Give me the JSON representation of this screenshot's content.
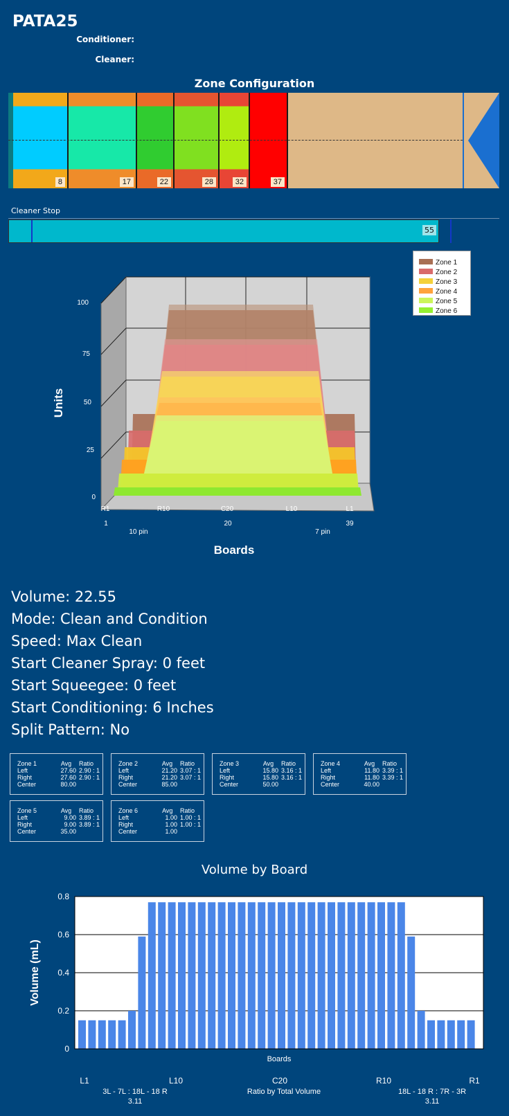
{
  "header": {
    "title": "PATA25",
    "conditioner_label": "Conditioner:",
    "cleaner_label": "Cleaner:"
  },
  "zone_config": {
    "title": "Zone Configuration",
    "zones": [
      {
        "label": "8",
        "color": "#00ccff"
      },
      {
        "label": "17",
        "color": "#17e8a8"
      },
      {
        "label": "22",
        "color": "#30cc30"
      },
      {
        "label": "28",
        "color": "#80e020"
      },
      {
        "label": "32",
        "color": "#b0ec10"
      },
      {
        "label": "37",
        "color": "#ff0000"
      }
    ]
  },
  "cleaner_stop": {
    "label": "Cleaner Stop",
    "value": "55"
  },
  "chart3d": {
    "ylabel": "Units",
    "xlabel": "Boards",
    "yticks": [
      "100",
      "75",
      "50",
      "25",
      "0"
    ],
    "xticks": [
      "R1",
      "R10",
      "C20",
      "L10",
      "L1"
    ],
    "board_numbers": [
      "1",
      "20",
      "39"
    ],
    "pins": [
      "10 pin",
      "7 pin"
    ],
    "legend": [
      {
        "name": "Zone 1",
        "color": "#a86f54"
      },
      {
        "name": "Zone 2",
        "color": "#d96b6b"
      },
      {
        "name": "Zone 3",
        "color": "#f4d13a"
      },
      {
        "name": "Zone 4",
        "color": "#ffa33c"
      },
      {
        "name": "Zone 5",
        "color": "#ccf55a"
      },
      {
        "name": "Zone 6",
        "color": "#96f030"
      }
    ]
  },
  "info": {
    "volume": "Volume: 22.55",
    "mode": "Mode: Clean and Condition",
    "speed": "Speed: Max Clean",
    "start_cleaner": "Start Cleaner Spray: 0 feet",
    "start_squeegee": "Start Squeegee: 0 feet",
    "start_conditioning": "Start Conditioning: 6 Inches",
    "split": "Split Pattern: No"
  },
  "zone_boxes": [
    {
      "name": "Zone 1",
      "avg_h": "Avg",
      "ratio_h": "Ratio",
      "left": "27.60",
      "left_ratio": "2.90 : 1",
      "right": "27.60",
      "right_ratio": "2.90 : 1",
      "center": "80.00"
    },
    {
      "name": "Zone 2",
      "avg_h": "Avg",
      "ratio_h": "Ratio",
      "left": "21.20",
      "left_ratio": "3.07 : 1",
      "right": "21.20",
      "right_ratio": "3.07 : 1",
      "center": "85.00"
    },
    {
      "name": "Zone 3",
      "avg_h": "Avg",
      "ratio_h": "Ratio",
      "left": "15.80",
      "left_ratio": "3.16 : 1",
      "right": "15.80",
      "right_ratio": "3.16 : 1",
      "center": "50.00"
    },
    {
      "name": "Zone 4",
      "avg_h": "Avg",
      "ratio_h": "Ratio",
      "left": "11.80",
      "left_ratio": "3.39 : 1",
      "right": "11.80",
      "right_ratio": "3.39 : 1",
      "center": "40.00"
    },
    {
      "name": "Zone 5",
      "avg_h": "Avg",
      "ratio_h": "Ratio",
      "left": "9.00",
      "left_ratio": "3.89 : 1",
      "right": "9.00",
      "right_ratio": "3.89 : 1",
      "center": "35.00"
    },
    {
      "name": "Zone 6",
      "avg_h": "Avg",
      "ratio_h": "Ratio",
      "left": "1.00",
      "left_ratio": "1.00 : 1",
      "right": "1.00",
      "right_ratio": "1.00 : 1",
      "center": "1.00"
    }
  ],
  "row_labels": {
    "left": "Left",
    "right": "Right",
    "center": "Center"
  },
  "chart_data": {
    "type": "bar",
    "title": "Volume by Board",
    "ylabel": "Volume (mL)",
    "xlabel": "Boards",
    "ylim": [
      0,
      0.8
    ],
    "yticks": [
      "0",
      "0.2",
      "0.4",
      "0.6",
      "0.8"
    ],
    "xticks": [
      "L1",
      "L10",
      "C20",
      "R10",
      "R1"
    ],
    "bar_color": "#4a86e8",
    "values": [
      0.15,
      0.15,
      0.15,
      0.15,
      0.15,
      0.2,
      0.59,
      0.77,
      0.77,
      0.77,
      0.77,
      0.77,
      0.77,
      0.77,
      0.77,
      0.77,
      0.77,
      0.77,
      0.77,
      0.77,
      0.77,
      0.77,
      0.77,
      0.77,
      0.77,
      0.77,
      0.77,
      0.77,
      0.77,
      0.77,
      0.77,
      0.77,
      0.77,
      0.59,
      0.2,
      0.15,
      0.15,
      0.15,
      0.15,
      0.15
    ],
    "footer": {
      "left_ratio": "3L - 7L : 18L - 18 R",
      "left_value": "3.11",
      "center_label": "Ratio by Total Volume",
      "right_ratio": "18L - 18 R : 7R - 3R",
      "right_value": "3.11"
    }
  }
}
